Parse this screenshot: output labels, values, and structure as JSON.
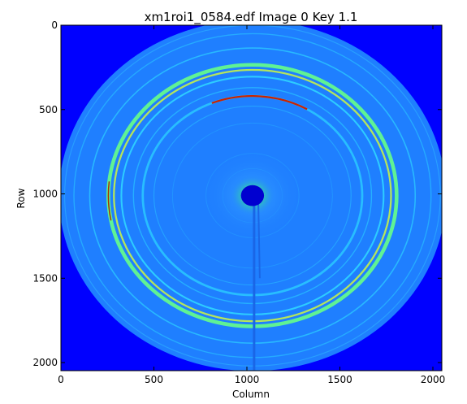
{
  "title": "xm1roi1_0584.edf Image 0 Key 1.1",
  "axes": {
    "xlabel": "Column",
    "ylabel": "Row",
    "xticks": [
      "0",
      "500",
      "1000",
      "1500",
      "2000"
    ],
    "yticks": [
      "0",
      "500",
      "1000",
      "1500",
      "2000"
    ]
  },
  "image": {
    "width": 2048,
    "height": 2048,
    "center": [
      1030,
      1010
    ],
    "beamstop_radius": 62,
    "detector_radius": 1040,
    "colors": {
      "background": "#0000ff",
      "detector": "#1f7fff",
      "ring_cyan": "#22d9ff",
      "ring_green": "#66ff66",
      "ring_yellow": "#d9ff33",
      "ring_red": "#cc2200",
      "beamstop": "#0000d0",
      "halo": "#2ee08a"
    },
    "rings": [
      {
        "r": 1010,
        "color": "#33c8ff",
        "width": 5,
        "opacity": 0.45
      },
      {
        "r": 960,
        "color": "#2ad0ff",
        "width": 6,
        "opacity": 0.55
      },
      {
        "r": 875,
        "color": "#2ee0ff",
        "width": 7,
        "opacity": 0.6
      },
      {
        "r": 775,
        "color": "#66ff88",
        "width": 20,
        "opacity": 0.9
      },
      {
        "r": 745,
        "color": "#d9ff33",
        "width": 10,
        "opacity": 0.8
      },
      {
        "r": 705,
        "color": "#33e6ff",
        "width": 9,
        "opacity": 0.75
      },
      {
        "r": 640,
        "color": "#2ad0ff",
        "width": 6,
        "opacity": 0.6
      },
      {
        "r": 590,
        "color": "#2cd8ff",
        "width": 12,
        "opacity": 0.7
      },
      {
        "r": 530,
        "color": "#2ac8ff",
        "width": 5,
        "opacity": 0.5
      },
      {
        "r": 430,
        "color": "#28c0ff",
        "width": 4,
        "opacity": 0.35
      },
      {
        "r": 250,
        "color": "#2ab8ff",
        "width": 4,
        "opacity": 0.3
      },
      {
        "r": 160,
        "color": "#2ab8ff",
        "width": 3,
        "opacity": 0.25
      }
    ]
  }
}
